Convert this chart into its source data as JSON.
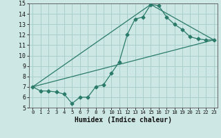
{
  "title": "",
  "xlabel": "Humidex (Indice chaleur)",
  "bg_color": "#cde8e4",
  "grid_color": "#a8d0cc",
  "line_color": "#2a7a6a",
  "xlim": [
    -0.5,
    23.5
  ],
  "ylim": [
    5,
    15
  ],
  "xticks": [
    0,
    1,
    2,
    3,
    4,
    5,
    6,
    7,
    8,
    9,
    10,
    11,
    12,
    13,
    14,
    15,
    16,
    17,
    18,
    19,
    20,
    21,
    22,
    23
  ],
  "yticks": [
    5,
    6,
    7,
    8,
    9,
    10,
    11,
    12,
    13,
    14,
    15
  ],
  "line1_x": [
    0,
    1,
    2,
    3,
    4,
    5,
    6,
    7,
    8,
    9,
    10,
    11,
    12,
    13,
    14,
    15,
    16,
    17,
    18,
    19,
    20,
    21,
    22,
    23
  ],
  "line1_y": [
    7.0,
    6.6,
    6.6,
    6.5,
    6.3,
    5.4,
    6.0,
    6.0,
    7.0,
    7.2,
    8.3,
    9.4,
    12.0,
    13.5,
    13.7,
    14.9,
    14.8,
    13.7,
    13.0,
    12.5,
    11.8,
    11.6,
    11.5,
    11.5
  ],
  "line2_x": [
    0,
    23
  ],
  "line2_y": [
    7.0,
    11.5
  ],
  "line3_x": [
    0,
    15,
    23
  ],
  "line3_y": [
    7.0,
    14.9,
    11.5
  ]
}
